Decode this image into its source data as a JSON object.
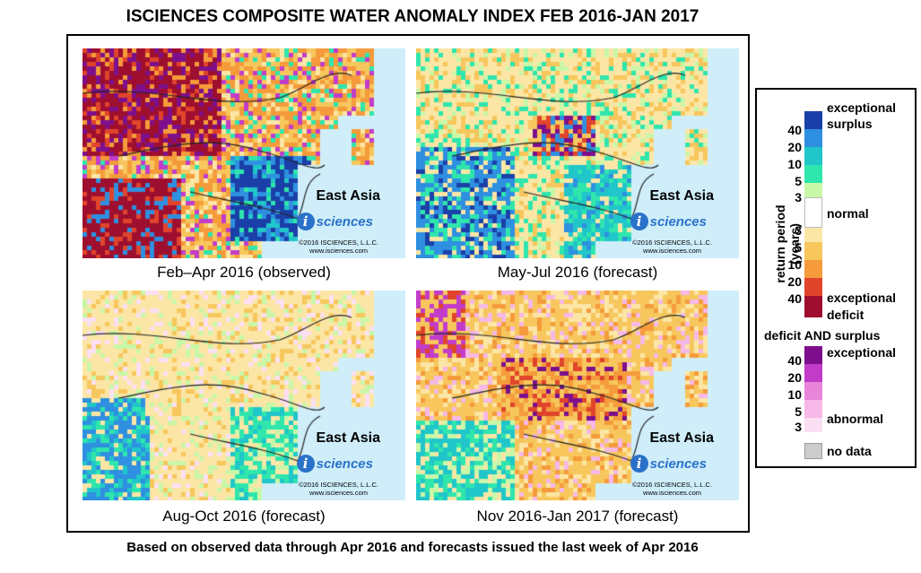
{
  "title": "ISCIENCES COMPOSITE WATER ANOMALY INDEX FEB 2016-JAN 2017",
  "footnote": "Based on observed data through Apr 2016 and forecasts issued the last week of Apr 2016",
  "panels": [
    {
      "caption": "Feb–Apr 2016 (observed)",
      "region": "East Asia",
      "logo_text": "sciences",
      "copyright_line1": "©2016  ISCIENCES, L.L.C.",
      "copyright_line2": "www.isciences.com"
    },
    {
      "caption": "May-Jul 2016 (forecast)",
      "region": "East Asia",
      "logo_text": "sciences",
      "copyright_line1": "©2016  ISCIENCES, L.L.C.",
      "copyright_line2": "www.isciences.com"
    },
    {
      "caption": "Aug-Oct 2016 (forecast)",
      "region": "East Asia",
      "logo_text": "sciences",
      "copyright_line1": "©2016  ISCIENCES, L.L.C.",
      "copyright_line2": "www.isciences.com"
    },
    {
      "caption": "Nov 2016-Jan 2017 (forecast)",
      "region": "East Asia",
      "logo_text": "sciences",
      "copyright_line1": "©2016  ISCIENCES, L.L.C.",
      "copyright_line2": "www.isciences.com"
    }
  ],
  "legend": {
    "axis_label": "return period (years)",
    "surplus_label_1": "exceptional",
    "surplus_label_2": "surplus",
    "normal_label": "normal",
    "deficit_label_1": "exceptional",
    "deficit_label_2": "deficit",
    "both_title": "deficit AND surplus",
    "both_exceptional": "exceptional",
    "both_abnormal": "abnormal",
    "no_data": "no data",
    "surplus_ticks": [
      "40",
      "20",
      "10",
      "5",
      "3"
    ],
    "deficit_ticks": [
      "3",
      "5",
      "10",
      "20",
      "40"
    ],
    "both_ticks": [
      "40",
      "20",
      "10",
      "5",
      "3"
    ],
    "surplus_colors": [
      "#1b3fa8",
      "#2f8fe0",
      "#20c6c9",
      "#2fe6ad",
      "#c9f7a8"
    ],
    "deficit_colors": [
      "#fce6a6",
      "#f7c75d",
      "#f59b3b",
      "#e0442b",
      "#9e0f2f"
    ],
    "both_colors": [
      "#7d0f8c",
      "#c23cc9",
      "#e885d9",
      "#f6b8e6",
      "#fbdff3"
    ],
    "normal_color": "#ffffff",
    "no_data_color": "#cccccc",
    "water_color": "#cfeefa"
  }
}
